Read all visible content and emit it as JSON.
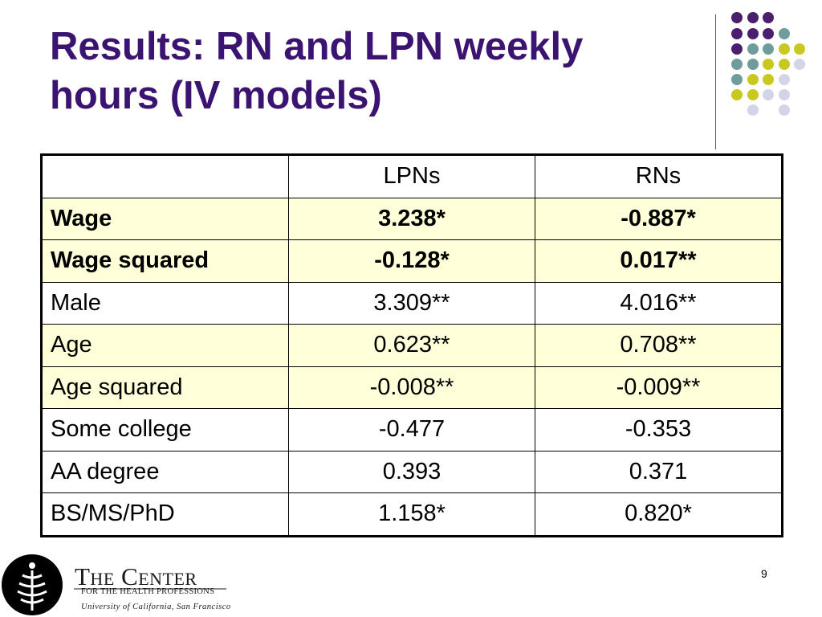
{
  "slide": {
    "title": "Results: RN and LPN weekly hours (IV models)",
    "page_number": "9"
  },
  "table": {
    "headers": [
      "",
      "LPNs",
      "RNs"
    ],
    "rows": [
      {
        "label": "Wage",
        "lpn": "3.238*",
        "rn": "-0.887*",
        "highlight": true,
        "bold": true
      },
      {
        "label": "Wage squared",
        "lpn": "-0.128*",
        "rn": "0.017**",
        "highlight": true,
        "bold": true
      },
      {
        "label": "Male",
        "lpn": "3.309**",
        "rn": "4.016**",
        "highlight": false,
        "bold": false
      },
      {
        "label": "Age",
        "lpn": "0.623**",
        "rn": "0.708**",
        "highlight": true,
        "bold": false
      },
      {
        "label": "Age squared",
        "lpn": "-0.008**",
        "rn": "-0.009**",
        "highlight": true,
        "bold": false
      },
      {
        "label": "Some college",
        "lpn": "-0.477",
        "rn": "-0.353",
        "highlight": false,
        "bold": false
      },
      {
        "label": "AA degree",
        "lpn": "0.393",
        "rn": "0.371",
        "highlight": false,
        "bold": false
      },
      {
        "label": "BS/MS/PhD",
        "lpn": "1.158*",
        "rn": "0.820*",
        "highlight": false,
        "bold": false
      }
    ]
  },
  "logo": {
    "name": "The Center",
    "subtitle": "FOR THE HEALTH PROFESSIONS",
    "university": "University of California, San Francisco",
    "icon": "caduceus-emblem-icon"
  },
  "decoration": {
    "icon": "dot-grid-icon",
    "colors": [
      "#4b1e6e",
      "#6f9c9c",
      "#c8c820",
      "#d4d4e8"
    ]
  }
}
